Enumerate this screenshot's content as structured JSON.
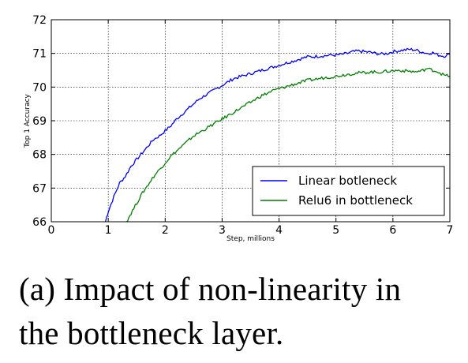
{
  "chart_data": {
    "type": "line",
    "xlabel": "Step, millions",
    "ylabel": "Top 1 Accuracy",
    "xlim": [
      0,
      7
    ],
    "ylim": [
      66,
      72
    ],
    "x_ticks": [
      "0",
      "1",
      "2",
      "3",
      "4",
      "5",
      "6",
      "7"
    ],
    "y_ticks": [
      "66",
      "67",
      "68",
      "69",
      "70",
      "71",
      "72"
    ],
    "grid": true,
    "legend_position": "bottom-right",
    "series": [
      {
        "name": "Linear botleneck",
        "color": "#0000ff",
        "points": [
          [
            0.95,
            66.0
          ],
          [
            1.0,
            66.3
          ],
          [
            1.1,
            66.75
          ],
          [
            1.2,
            67.15
          ],
          [
            1.3,
            67.35
          ],
          [
            1.4,
            67.65
          ],
          [
            1.5,
            67.85
          ],
          [
            1.6,
            68.05
          ],
          [
            1.7,
            68.25
          ],
          [
            1.8,
            68.45
          ],
          [
            1.9,
            68.55
          ],
          [
            2.0,
            68.7
          ],
          [
            2.1,
            68.85
          ],
          [
            2.2,
            69.05
          ],
          [
            2.3,
            69.2
          ],
          [
            2.4,
            69.35
          ],
          [
            2.5,
            69.5
          ],
          [
            2.6,
            69.65
          ],
          [
            2.7,
            69.75
          ],
          [
            2.8,
            69.85
          ],
          [
            2.9,
            69.95
          ],
          [
            3.0,
            70.05
          ],
          [
            3.1,
            70.15
          ],
          [
            3.2,
            70.25
          ],
          [
            3.3,
            70.3
          ],
          [
            3.4,
            70.35
          ],
          [
            3.5,
            70.4
          ],
          [
            3.6,
            70.45
          ],
          [
            3.7,
            70.5
          ],
          [
            3.8,
            70.55
          ],
          [
            3.9,
            70.6
          ],
          [
            4.0,
            70.65
          ],
          [
            4.1,
            70.7
          ],
          [
            4.2,
            70.75
          ],
          [
            4.3,
            70.8
          ],
          [
            4.4,
            70.85
          ],
          [
            4.5,
            70.9
          ],
          [
            4.6,
            70.9
          ],
          [
            4.7,
            70.92
          ],
          [
            4.8,
            70.93
          ],
          [
            4.9,
            70.95
          ],
          [
            5.0,
            70.95
          ],
          [
            5.1,
            70.97
          ],
          [
            5.2,
            71.0
          ],
          [
            5.3,
            71.05
          ],
          [
            5.4,
            71.07
          ],
          [
            5.5,
            71.05
          ],
          [
            5.6,
            71.03
          ],
          [
            5.7,
            71.0
          ],
          [
            5.8,
            70.98
          ],
          [
            5.9,
            71.0
          ],
          [
            6.0,
            71.05
          ],
          [
            6.1,
            71.08
          ],
          [
            6.2,
            71.1
          ],
          [
            6.3,
            71.12
          ],
          [
            6.4,
            71.1
          ],
          [
            6.5,
            71.05
          ],
          [
            6.6,
            71.0
          ],
          [
            6.7,
            71.02
          ],
          [
            6.8,
            70.95
          ],
          [
            6.9,
            70.92
          ],
          [
            7.0,
            70.97
          ]
        ]
      },
      {
        "name": "Relu6 in bottleneck",
        "color": "#007f00",
        "points": [
          [
            1.32,
            66.0
          ],
          [
            1.4,
            66.25
          ],
          [
            1.5,
            66.55
          ],
          [
            1.6,
            66.85
          ],
          [
            1.7,
            67.1
          ],
          [
            1.8,
            67.35
          ],
          [
            1.9,
            67.55
          ],
          [
            2.0,
            67.75
          ],
          [
            2.1,
            67.95
          ],
          [
            2.2,
            68.1
          ],
          [
            2.3,
            68.25
          ],
          [
            2.4,
            68.4
          ],
          [
            2.5,
            68.55
          ],
          [
            2.6,
            68.65
          ],
          [
            2.7,
            68.75
          ],
          [
            2.8,
            68.85
          ],
          [
            2.9,
            68.95
          ],
          [
            3.0,
            69.05
          ],
          [
            3.1,
            69.15
          ],
          [
            3.2,
            69.25
          ],
          [
            3.3,
            69.35
          ],
          [
            3.4,
            69.45
          ],
          [
            3.5,
            69.55
          ],
          [
            3.6,
            69.65
          ],
          [
            3.7,
            69.75
          ],
          [
            3.8,
            69.82
          ],
          [
            3.9,
            69.9
          ],
          [
            4.0,
            69.95
          ],
          [
            4.1,
            70.0
          ],
          [
            4.2,
            70.05
          ],
          [
            4.3,
            70.1
          ],
          [
            4.4,
            70.15
          ],
          [
            4.5,
            70.2
          ],
          [
            4.6,
            70.22
          ],
          [
            4.7,
            70.25
          ],
          [
            4.8,
            70.28
          ],
          [
            4.9,
            70.3
          ],
          [
            5.0,
            70.32
          ],
          [
            5.1,
            70.35
          ],
          [
            5.2,
            70.38
          ],
          [
            5.3,
            70.4
          ],
          [
            5.4,
            70.42
          ],
          [
            5.5,
            70.43
          ],
          [
            5.6,
            70.45
          ],
          [
            5.7,
            70.44
          ],
          [
            5.8,
            70.45
          ],
          [
            5.9,
            70.47
          ],
          [
            6.0,
            70.48
          ],
          [
            6.1,
            70.5
          ],
          [
            6.2,
            70.48
          ],
          [
            6.3,
            70.47
          ],
          [
            6.4,
            70.45
          ],
          [
            6.5,
            70.48
          ],
          [
            6.6,
            70.55
          ],
          [
            6.7,
            70.5
          ],
          [
            6.8,
            70.45
          ],
          [
            6.9,
            70.35
          ],
          [
            7.0,
            70.32
          ]
        ]
      }
    ]
  },
  "caption": {
    "line1": "(a) Impact of non-linearity in",
    "line2": "the bottleneck layer."
  }
}
